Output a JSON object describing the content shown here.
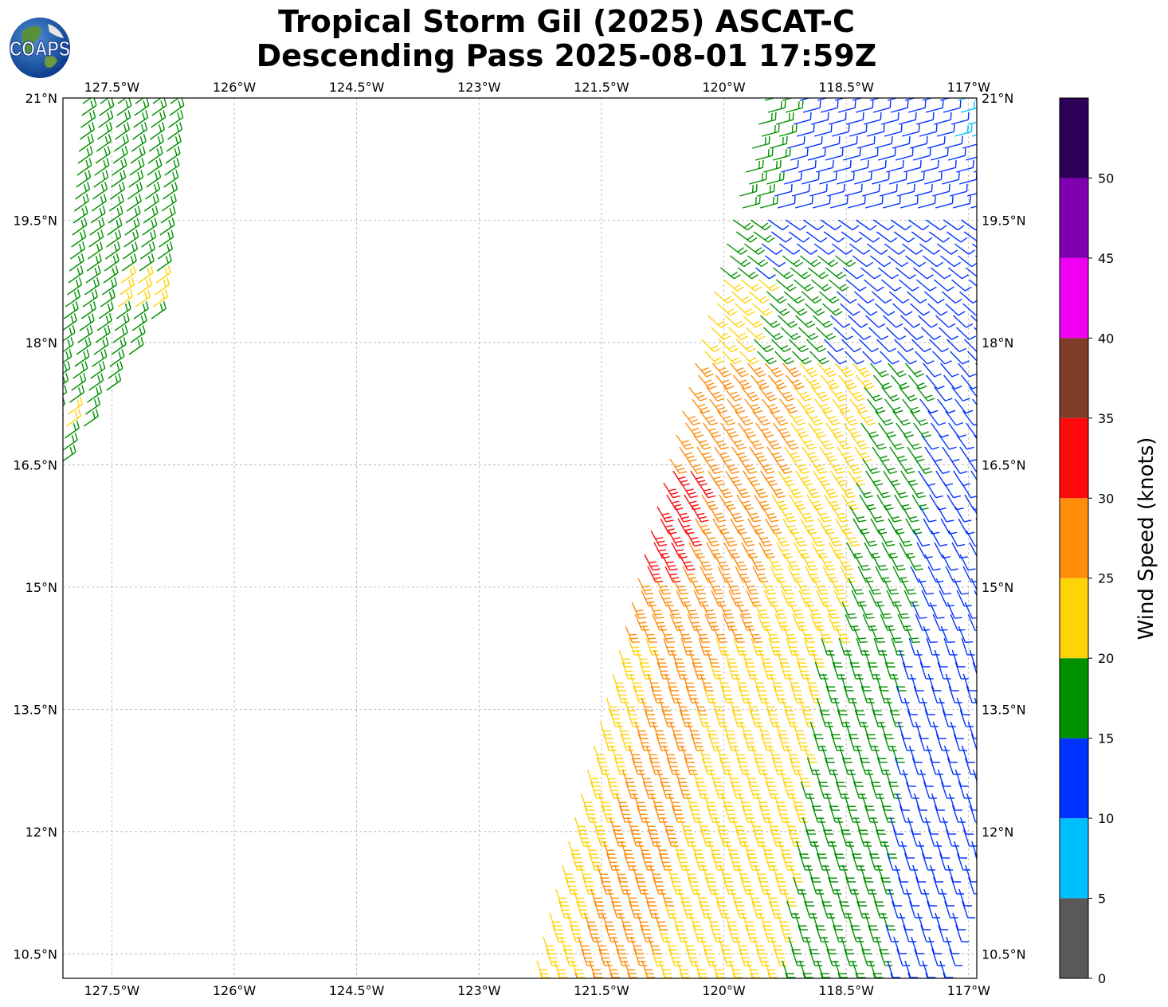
{
  "title_line1": "Tropical Storm Gil (2025) ASCAT-C",
  "title_line2": "Descending Pass 2025-08-01 17:59Z",
  "logo_text": "COAPS",
  "map": {
    "lon_range": [
      -128.1,
      -116.9
    ],
    "lat_range": [
      10.2,
      21.0
    ],
    "grid": true,
    "lon_ticks": [
      -127.5,
      -126,
      -124.5,
      -123,
      -121.5,
      -120,
      -118.5,
      -117
    ],
    "lon_tick_labels": [
      "127.5°W",
      "126°W",
      "124.5°W",
      "123°W",
      "121.5°W",
      "120°W",
      "118.5°W",
      "117°W"
    ],
    "lat_ticks": [
      10.5,
      12,
      13.5,
      15,
      16.5,
      18,
      19.5,
      21
    ],
    "lat_tick_labels": [
      "10.5°N",
      "12°N",
      "13.5°N",
      "15°N",
      "16.5°N",
      "18°N",
      "19.5°N",
      "21°N"
    ]
  },
  "colorbar": {
    "label": "Wind Speed (knots)",
    "ticks": [
      0,
      5,
      10,
      15,
      20,
      25,
      30,
      35,
      40,
      45,
      50
    ],
    "tick_labels": [
      "0",
      "5",
      "10",
      "15",
      "20",
      "25",
      "30",
      "35",
      "40",
      "45",
      "50"
    ],
    "range": [
      0,
      55
    ],
    "colors": [
      "#595959",
      "#00bfff",
      "#0033ff",
      "#009100",
      "#ffd30a",
      "#ff8c0a",
      "#ff0a0a",
      "#7f3c26",
      "#f000f0",
      "#8000b0",
      "#2d0057"
    ]
  }
}
